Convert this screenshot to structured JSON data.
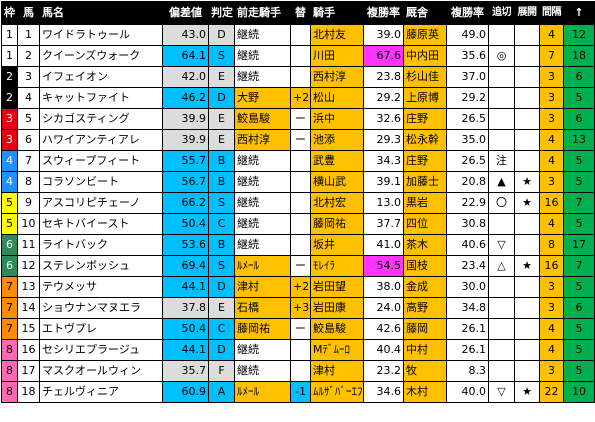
{
  "headers": {
    "waku": "枠",
    "num": "馬",
    "name": "馬名",
    "dev": "偏差値",
    "grade": "判定",
    "prev_jockey": "前走騎手",
    "change": "替",
    "jockey": "騎手",
    "jockey_rate": "複勝率",
    "trainer": "厩舎",
    "trainer_rate": "複勝率",
    "tsuikiri": "追切",
    "tenkai": "展開",
    "interval": "間隔",
    "arrow": "↑"
  },
  "rows": [
    {
      "waku": "1",
      "num": "1",
      "name": "ワイドラトゥール",
      "dev": "43.0",
      "grade": "D",
      "prev": "継続",
      "chg": "",
      "jockey": "北村友",
      "jr": "39.0",
      "trainer": "藤原英",
      "tr": "49.0",
      "tsu": "",
      "ten": "",
      "int": "4",
      "up": "12"
    },
    {
      "waku": "1",
      "num": "2",
      "name": "クイーンズウォーク",
      "dev": "64.1",
      "grade": "S",
      "prev": "継続",
      "chg": "",
      "jockey": "川田",
      "jr": "67.6",
      "trainer": "中内田",
      "tr": "35.6",
      "tsu": "◎",
      "ten": "",
      "int": "7",
      "up": "18"
    },
    {
      "waku": "2",
      "num": "3",
      "name": "イフェイオン",
      "dev": "42.0",
      "grade": "E",
      "prev": "継続",
      "chg": "",
      "jockey": "西村淳",
      "jr": "23.8",
      "trainer": "杉山佳",
      "tr": "37.0",
      "tsu": "",
      "ten": "",
      "int": "3",
      "up": "6"
    },
    {
      "waku": "2",
      "num": "4",
      "name": "キャットファイト",
      "dev": "46.2",
      "grade": "D",
      "prev": "大野",
      "chg": "+2",
      "jockey": "松山",
      "jr": "29.2",
      "trainer": "上原博",
      "tr": "29.2",
      "tsu": "",
      "ten": "",
      "int": "3",
      "up": "5"
    },
    {
      "waku": "3",
      "num": "5",
      "name": "シカゴスティング",
      "dev": "39.9",
      "grade": "E",
      "prev": "鮫島駿",
      "chg": "ー",
      "jockey": "浜中",
      "jr": "32.6",
      "trainer": "庄野",
      "tr": "26.5",
      "tsu": "",
      "ten": "",
      "int": "3",
      "up": "6"
    },
    {
      "waku": "3",
      "num": "6",
      "name": "ハワイアンティアレ",
      "dev": "39.9",
      "grade": "E",
      "prev": "西村淳",
      "chg": "ー",
      "jockey": "池添",
      "jr": "29.3",
      "trainer": "松永幹",
      "tr": "35.0",
      "tsu": "",
      "ten": "",
      "int": "4",
      "up": "13"
    },
    {
      "waku": "4",
      "num": "7",
      "name": "スウィープフィート",
      "dev": "55.7",
      "grade": "B",
      "prev": "継続",
      "chg": "",
      "jockey": "武豊",
      "jr": "34.3",
      "trainer": "庄野",
      "tr": "26.5",
      "tsu": "注",
      "ten": "",
      "int": "4",
      "up": "5"
    },
    {
      "waku": "4",
      "num": "8",
      "name": "コラソンビート",
      "dev": "56.7",
      "grade": "B",
      "prev": "継続",
      "chg": "",
      "jockey": "横山武",
      "jr": "39.1",
      "trainer": "加藤士",
      "tr": "20.8",
      "tsu": "▲",
      "ten": "★",
      "int": "3",
      "up": "5"
    },
    {
      "waku": "5",
      "num": "9",
      "name": "アスコリピチェーノ",
      "dev": "66.2",
      "grade": "S",
      "prev": "継続",
      "chg": "",
      "jockey": "北村宏",
      "jr": "13.0",
      "trainer": "黒岩",
      "tr": "22.9",
      "tsu": "〇",
      "ten": "★",
      "int": "16",
      "up": "7"
    },
    {
      "waku": "5",
      "num": "10",
      "name": "セキトバイースト",
      "dev": "50.4",
      "grade": "C",
      "prev": "継続",
      "chg": "",
      "jockey": "藤岡祐",
      "jr": "37.7",
      "trainer": "四位",
      "tr": "30.8",
      "tsu": "",
      "ten": "",
      "int": "4",
      "up": "5"
    },
    {
      "waku": "6",
      "num": "11",
      "name": "ライトバック",
      "dev": "53.6",
      "grade": "B",
      "prev": "継続",
      "chg": "",
      "jockey": "坂井",
      "jr": "41.0",
      "trainer": "茶木",
      "tr": "40.6",
      "tsu": "▽",
      "ten": "",
      "int": "8",
      "up": "17"
    },
    {
      "waku": "6",
      "num": "12",
      "name": "ステレンボッシュ",
      "dev": "69.4",
      "grade": "S",
      "prev": "ﾙﾒｰﾙ",
      "chg": "ー",
      "jockey": "ﾓﾚｲﾗ",
      "jr": "54.5",
      "trainer": "国枝",
      "tr": "23.4",
      "tsu": "△",
      "ten": "★",
      "int": "16",
      "up": "7"
    },
    {
      "waku": "7",
      "num": "13",
      "name": "テウメッサ",
      "dev": "44.1",
      "grade": "D",
      "prev": "津村",
      "chg": "+2",
      "jockey": "岩田望",
      "jr": "38.0",
      "trainer": "金成",
      "tr": "30.0",
      "tsu": "",
      "ten": "",
      "int": "3",
      "up": "5"
    },
    {
      "waku": "7",
      "num": "14",
      "name": "ショウナンマヌエラ",
      "dev": "37.8",
      "grade": "E",
      "prev": "石橋",
      "chg": "+3",
      "jockey": "岩田康",
      "jr": "24.0",
      "trainer": "高野",
      "tr": "34.8",
      "tsu": "",
      "ten": "",
      "int": "3",
      "up": "6"
    },
    {
      "waku": "7",
      "num": "15",
      "name": "エトヴプレ",
      "dev": "50.4",
      "grade": "C",
      "prev": "藤岡祐",
      "chg": "ー",
      "jockey": "鮫島駿",
      "jr": "42.6",
      "trainer": "藤岡",
      "tr": "26.1",
      "tsu": "",
      "ten": "",
      "int": "4",
      "up": "5"
    },
    {
      "waku": "8",
      "num": "16",
      "name": "セシリエプラージュ",
      "dev": "44.1",
      "grade": "D",
      "prev": "継続",
      "chg": "",
      "jockey": "Mﾃﾞﾑｰﾛ",
      "jr": "40.4",
      "trainer": "中村",
      "tr": "26.1",
      "tsu": "",
      "ten": "",
      "int": "4",
      "up": "5"
    },
    {
      "waku": "8",
      "num": "17",
      "name": "マスクオールウィン",
      "dev": "35.7",
      "grade": "F",
      "prev": "継続",
      "chg": "",
      "jockey": "津村",
      "jr": "23.2",
      "trainer": "牧",
      "tr": "8.3",
      "tsu": "",
      "ten": "",
      "int": "3",
      "up": "5"
    },
    {
      "waku": "8",
      "num": "18",
      "name": "チェルヴィニア",
      "dev": "60.9",
      "grade": "A",
      "prev": "ﾙﾒｰﾙ",
      "chg": "-1",
      "jockey": "ﾑﾙｻﾞﾊﾞｰｴﾌ",
      "jr": "34.6",
      "trainer": "木村",
      "tr": "40.0",
      "tsu": "▽",
      "ten": "★",
      "int": "22",
      "up": "10"
    }
  ],
  "colors": {
    "dev_high": "#00bfff",
    "dev_low": "#dcdcdc",
    "jockey_bg": "#ffc000",
    "trainer_bg": "#ffc000",
    "high_rate": "#ff33ff",
    "mid_rate": "#ffff00",
    "int_bg": "#ffc000",
    "up_bg": "#00b050"
  }
}
